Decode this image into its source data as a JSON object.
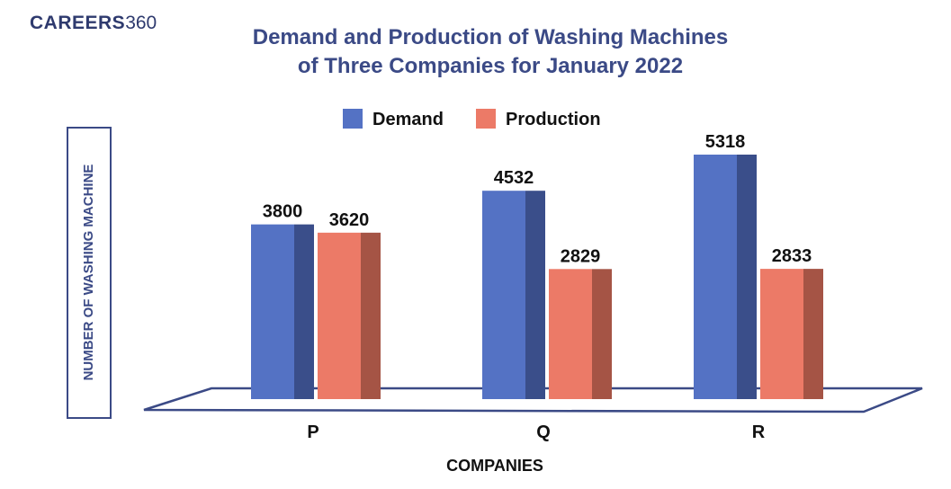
{
  "brand": {
    "bold": "CAREERS",
    "light": "360"
  },
  "colors": {
    "demand_front": "#5472c4",
    "demand_side": "#3a4e8a",
    "production_front": "#ec7a67",
    "production_side": "#a55445",
    "title": "#3b4a86",
    "floor": "#3b4a86"
  },
  "chart_data": {
    "type": "bar",
    "title_lines": [
      "Demand and Production of Washing Machines",
      "of Three Companies for January 2022"
    ],
    "xlabel": "COMPANIES",
    "ylabel": "NUMBER OF WASHING MACHINE",
    "categories": [
      "P",
      "Q",
      "R"
    ],
    "series": [
      {
        "name": "Demand",
        "values": [
          3800,
          4532,
          5318
        ]
      },
      {
        "name": "Production",
        "values": [
          3620,
          2829,
          2833
        ]
      }
    ],
    "legend": "top-center",
    "grid": false
  }
}
